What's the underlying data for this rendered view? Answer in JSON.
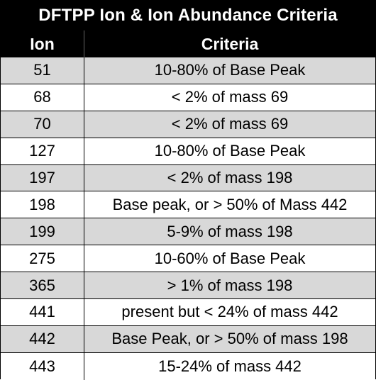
{
  "table": {
    "title": "DFTPP Ion & Ion Abundance Criteria",
    "headers": {
      "ion": "Ion",
      "criteria": "Criteria"
    },
    "rows": [
      {
        "ion": "51",
        "criteria": "10-80% of Base Peak",
        "shaded": true
      },
      {
        "ion": "68",
        "criteria": "< 2% of mass 69",
        "shaded": false
      },
      {
        "ion": "70",
        "criteria": "< 2% of mass 69",
        "shaded": true
      },
      {
        "ion": "127",
        "criteria": "10-80% of Base Peak",
        "shaded": false
      },
      {
        "ion": "197",
        "criteria": "< 2% of mass 198",
        "shaded": true
      },
      {
        "ion": "198",
        "criteria": "Base peak, or > 50% of Mass 442",
        "shaded": false
      },
      {
        "ion": "199",
        "criteria": "5-9% of mass 198",
        "shaded": true
      },
      {
        "ion": "275",
        "criteria": "10-60% of Base Peak",
        "shaded": false
      },
      {
        "ion": "365",
        "criteria": "> 1% of mass 198",
        "shaded": true
      },
      {
        "ion": "441",
        "criteria": "present but < 24% of mass 442",
        "shaded": false
      },
      {
        "ion": "442",
        "criteria": "Base Peak, or > 50% of mass 198",
        "shaded": true
      },
      {
        "ion": "443",
        "criteria": "15-24% of mass 442",
        "shaded": false
      }
    ]
  },
  "colors": {
    "header_bg": "#000000",
    "header_text": "#ffffff",
    "shaded_row": "#d8d8d8",
    "plain_row": "#ffffff"
  }
}
